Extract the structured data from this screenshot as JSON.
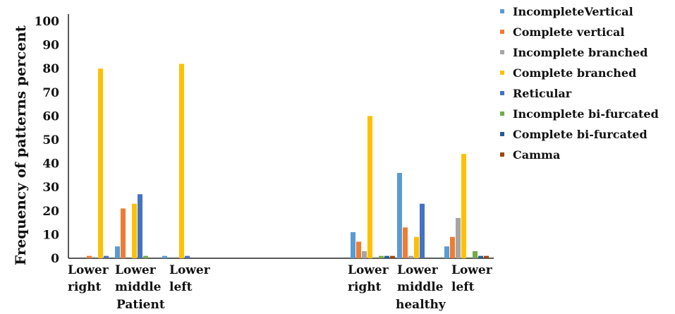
{
  "chart_data": {
    "type": "bar",
    "ylabel": "Frequency of patterns percent",
    "xlabel": "",
    "ylim": [
      0,
      100
    ],
    "yticks": [
      0,
      10,
      20,
      30,
      40,
      50,
      60,
      70,
      80,
      90,
      100
    ],
    "grid": false,
    "legend_position": "right",
    "categories": [
      "Lower right",
      "Lower middle",
      "Lower left",
      "Lower right",
      "Lower middle",
      "Lower left"
    ],
    "category_lines": [
      [
        "Lower",
        "right"
      ],
      [
        "Lower",
        "middle"
      ],
      [
        "Lower",
        "left"
      ],
      [
        "Lower",
        "right"
      ],
      [
        "Lower",
        "middle"
      ],
      [
        "Lower",
        "left"
      ]
    ],
    "groups": [
      {
        "label": "Patient",
        "categories": [
          0,
          1,
          2
        ]
      },
      {
        "label": "healthy",
        "categories": [
          3,
          4,
          5
        ]
      }
    ],
    "series": [
      {
        "name": "IncompleteVertical",
        "color": "#5b9bd5",
        "values": [
          0,
          5,
          1,
          11,
          36,
          5
        ]
      },
      {
        "name": "Complete vertical",
        "color": "#ed7d31",
        "values": [
          1,
          21,
          0,
          7,
          13,
          9
        ]
      },
      {
        "name": "Incomplete branched",
        "color": "#a5a5a5",
        "values": [
          0,
          0,
          0,
          3,
          1,
          17
        ]
      },
      {
        "name": "Complete branched",
        "color": "#ffc000",
        "values": [
          80,
          23,
          82,
          60,
          9,
          44
        ]
      },
      {
        "name": "Reticular",
        "color": "#4472c4",
        "values": [
          1,
          27,
          1,
          0,
          23,
          0
        ]
      },
      {
        "name": "Incomplete bi-furcated",
        "color": "#70ad47",
        "values": [
          0,
          1,
          0,
          1,
          0,
          3
        ]
      },
      {
        "name": "Complete bi-furcated",
        "color": "#255e91",
        "values": [
          3,
          0,
          0,
          1,
          0,
          1
        ]
      },
      {
        "name": "Camma",
        "color": "#9e480e",
        "values": [
          0,
          0,
          0,
          1,
          0,
          1
        ]
      }
    ]
  }
}
